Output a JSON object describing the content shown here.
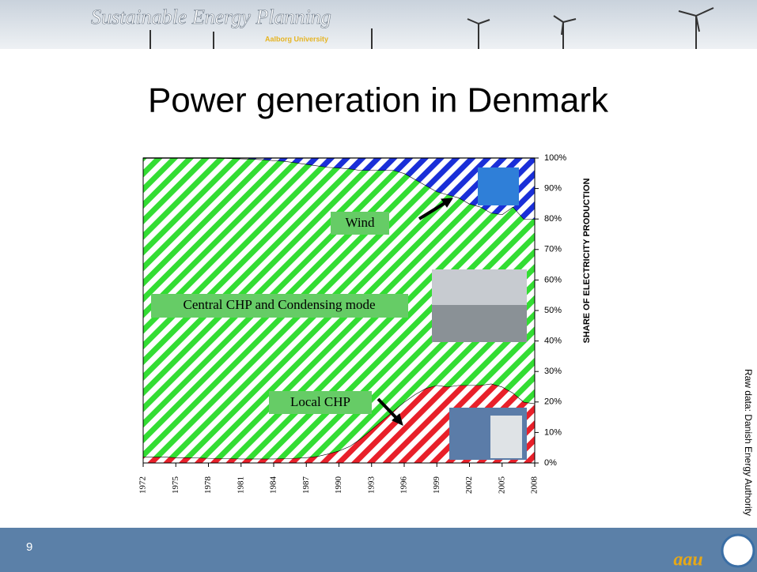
{
  "header": {
    "title": "Sustainable Energy Planning",
    "subtitle": "Aalborg University"
  },
  "footer": {
    "page": "9",
    "logo": "aau"
  },
  "source_note": "Raw data: Danish Energy Authority",
  "chart_data": {
    "type": "area",
    "stacked": true,
    "title": "Power generation in Denmark",
    "y_label": "SHARE OF ELECTRICITY PRODUCTION",
    "annotations": [
      "Wind",
      "Central CHP and Condensing mode",
      "Local CHP"
    ],
    "x": [
      1972,
      1973,
      1974,
      1975,
      1976,
      1977,
      1978,
      1979,
      1980,
      1981,
      1982,
      1983,
      1984,
      1985,
      1986,
      1987,
      1988,
      1989,
      1990,
      1991,
      1992,
      1993,
      1994,
      1995,
      1996,
      1997,
      1998,
      1999,
      2000,
      2001,
      2002,
      2003,
      2004,
      2005,
      2006,
      2007,
      2008
    ],
    "xlim": [
      1972,
      2008
    ],
    "xticks": [
      1972,
      1975,
      1978,
      1981,
      1984,
      1987,
      1990,
      1993,
      1996,
      1999,
      2002,
      2005,
      2008
    ],
    "ylim": [
      0,
      100
    ],
    "yticks": [
      {
        "value": 0,
        "label": "0%"
      },
      {
        "value": 10,
        "label": "10%"
      },
      {
        "value": 20,
        "label": "20%"
      },
      {
        "value": 30,
        "label": "30%"
      },
      {
        "value": 40,
        "label": "40%"
      },
      {
        "value": 50,
        "label": "50%"
      },
      {
        "value": 60,
        "label": "60%"
      },
      {
        "value": 70,
        "label": "70%"
      },
      {
        "value": 80,
        "label": "80%"
      },
      {
        "value": 90,
        "label": "90%"
      },
      {
        "value": 100,
        "label": "100%"
      }
    ],
    "series": [
      {
        "name": "Local CHP",
        "color": "#e8202a",
        "values": [
          2,
          2,
          2,
          1.8,
          1.8,
          1.7,
          1.6,
          1.5,
          1.5,
          1.4,
          1.4,
          1.4,
          1.4,
          1.5,
          1.6,
          1.8,
          2.2,
          3,
          4,
          5.5,
          8,
          11,
          14,
          17,
          20,
          22.5,
          24.5,
          25.5,
          25,
          25.5,
          25.5,
          25.5,
          26,
          25,
          23,
          20,
          19.5
        ]
      },
      {
        "name": "Central CHP and Condensing mode",
        "color": "#33dd33",
        "values": [
          98,
          98,
          98,
          98.2,
          98.2,
          98.3,
          98.4,
          98.5,
          98.4,
          98.4,
          98.3,
          98.1,
          97.8,
          97.5,
          96.9,
          96.2,
          95.3,
          94,
          92.8,
          91,
          88,
          85,
          82,
          79,
          75,
          70.5,
          66.5,
          63.5,
          63,
          61.5,
          59.5,
          58.5,
          56,
          56.5,
          61,
          60,
          60.5
        ]
      },
      {
        "name": "Wind",
        "color": "#1a2fd8",
        "values": [
          0,
          0,
          0,
          0,
          0,
          0,
          0,
          0,
          0.1,
          0.2,
          0.3,
          0.5,
          0.8,
          1,
          1.5,
          2,
          2.5,
          3,
          3.2,
          3.5,
          4,
          4,
          4,
          4,
          5,
          7,
          9,
          11,
          12,
          13,
          15,
          16,
          18,
          18.5,
          16,
          20,
          20
        ]
      }
    ]
  }
}
